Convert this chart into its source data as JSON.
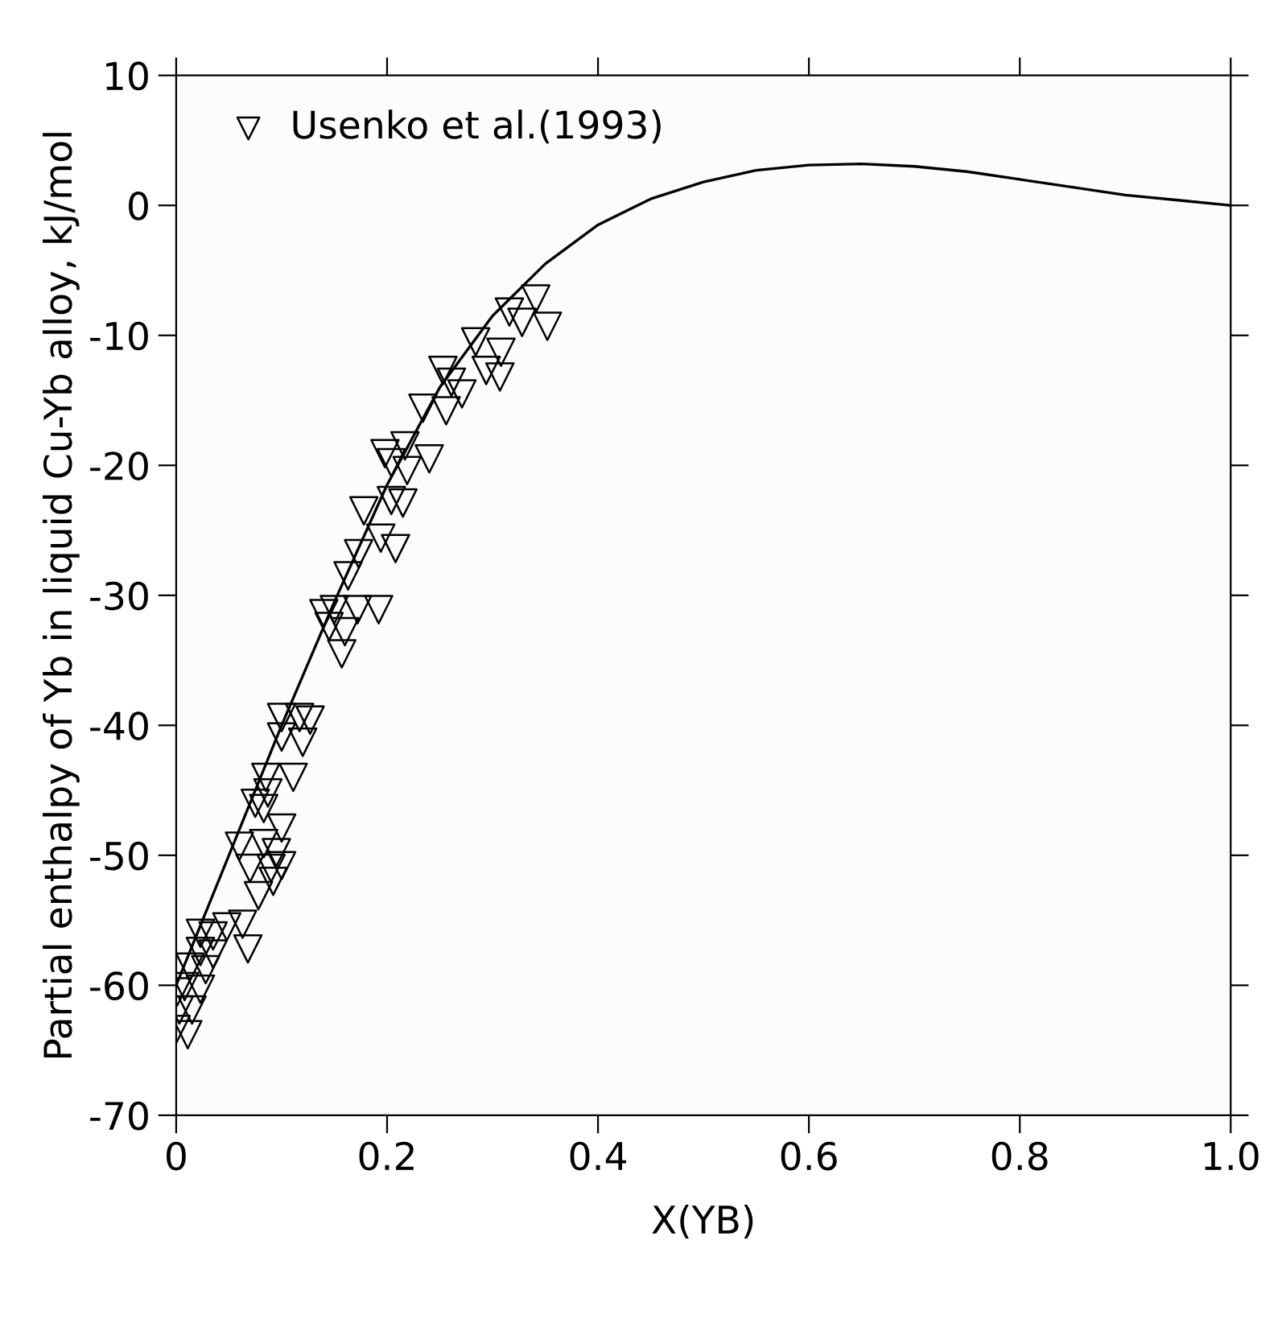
{
  "chart_data": {
    "type": "scatter",
    "xlabel": "X(YB)",
    "ylabel": "Partial enthalpy of Yb in liquid Cu-Yb alloy, kJ/mol",
    "xlim": [
      0,
      1.0
    ],
    "ylim": [
      -70,
      10
    ],
    "xticks": [
      0,
      0.2,
      0.4,
      0.6,
      0.8,
      {
        "value": 1,
        "label": "1.0"
      }
    ],
    "yticks": [
      -70,
      -60,
      -50,
      -40,
      -30,
      -20,
      -10,
      0,
      10
    ],
    "grid": false,
    "legend": "top left",
    "series": [
      {
        "name": "Usenko et al.(1993)",
        "marker": "triangle",
        "color": "#000000",
        "x": [
          0.341,
          0.316,
          0.328,
          0.352,
          0.284,
          0.308,
          0.294,
          0.307,
          0.253,
          0.261,
          0.271,
          0.234,
          0.256,
          0.198,
          0.217,
          0.204,
          0.219,
          0.24,
          0.178,
          0.204,
          0.215,
          0.194,
          0.208,
          0.173,
          0.163,
          0.14,
          0.15,
          0.172,
          0.192,
          0.16,
          0.145,
          0.157,
          0.1,
          0.117,
          0.127,
          0.1,
          0.12,
          0.085,
          0.111,
          0.087,
          0.075,
          0.083,
          0.1,
          0.06,
          0.083,
          0.095,
          0.07,
          0.09,
          0.1,
          0.092,
          0.078,
          0.023,
          0.035,
          0.048,
          0.063,
          0.068,
          0.023,
          0.035,
          0.013,
          0.028,
          0.008,
          0.023,
          0.001,
          0.003,
          0.015,
          0.0,
          0.011
        ],
        "values": [
          -7.2,
          -8.2,
          -9.0,
          -9.3,
          -10.5,
          -11.3,
          -12.7,
          -13.2,
          -12.7,
          -13.6,
          -14.5,
          -15.6,
          -15.8,
          -19.1,
          -18.5,
          -19.8,
          -20.4,
          -19.5,
          -23.5,
          -22.7,
          -22.9,
          -25.6,
          -26.4,
          -26.8,
          -28.5,
          -31.4,
          -31.1,
          -31.1,
          -31.1,
          -32.8,
          -32.4,
          -34.5,
          -39.4,
          -39.4,
          -39.6,
          -40.9,
          -41.3,
          -44.0,
          -44.0,
          -45.2,
          -46.0,
          -46.4,
          -47.9,
          -49.3,
          -49.1,
          -49.8,
          -51.0,
          -51.0,
          -50.8,
          -52.0,
          -53.1,
          -56.0,
          -56.2,
          -55.5,
          -55.3,
          -57.2,
          -57.4,
          -57.6,
          -58.6,
          -58.8,
          -60.1,
          -60.3,
          -60.5,
          -61.9,
          -61.9,
          -63.4,
          -63.8
        ]
      },
      {
        "type": "line",
        "marker": "none",
        "line_style": "solid",
        "color": "#000000",
        "x": [
          0,
          0.05,
          0.1,
          0.15,
          0.2,
          0.25,
          0.3,
          0.35,
          0.4,
          0.45,
          0.5,
          0.55,
          0.6,
          0.65,
          0.7,
          0.75,
          0.8,
          0.85,
          0.9,
          0.95,
          1.0
        ],
        "values": [
          -60,
          -50,
          -40,
          -30.5,
          -21.5,
          -14,
          -8.5,
          -4.5,
          -1.5,
          0.5,
          1.8,
          2.7,
          3.1,
          3.2,
          3.0,
          2.6,
          2.0,
          1.4,
          0.8,
          0.4,
          0
        ]
      }
    ]
  }
}
